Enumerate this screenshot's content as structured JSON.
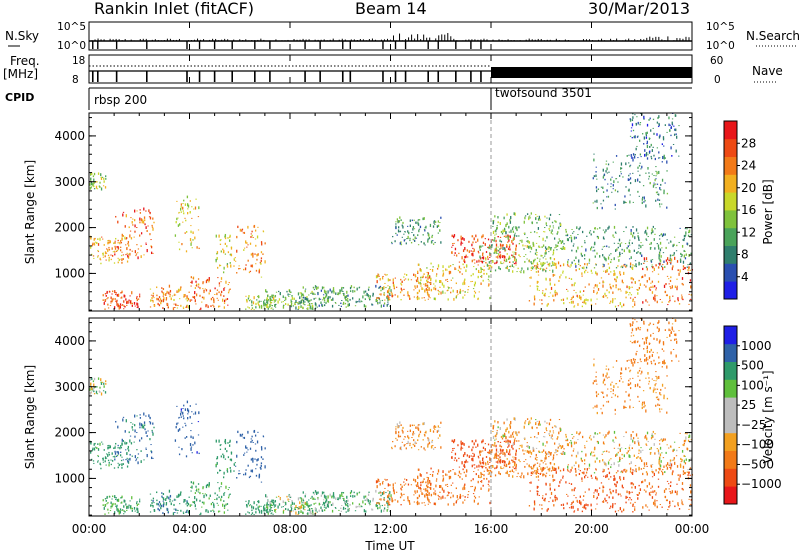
{
  "header": {
    "title": "Rankin Inlet (fitACF)",
    "beam": "Beam 14",
    "date": "30/Mar/2013"
  },
  "strip": {
    "nsky_label": "N.Sky",
    "nsky_tick_top": "10^5",
    "nsky_tick_bottom": "10^0",
    "nsearch_label": "N.Search",
    "nsearch_tick_top": "10^5",
    "nsearch_tick_bottom": "10^0",
    "freq_label_line1": "Freq.",
    "freq_label_line2": "[MHz]",
    "freq_tick_top": "18",
    "freq_tick_bottom": "8",
    "nave_label": "Nave",
    "nave_tick_top": "60",
    "nave_tick_bottom": "0",
    "cpid_label": "CPID",
    "cpid_segments": [
      {
        "name": "rbsp 200",
        "start_hour": 0,
        "end_hour": 16
      },
      {
        "name": "twofsound 3501",
        "start_hour": 16,
        "end_hour": 24
      }
    ]
  },
  "panels": {
    "power": {
      "ylabel": "Slant Range [km]",
      "cbar_label": "Power [dB]",
      "cbar_ticks": [
        "28",
        "24",
        "20",
        "16",
        "12",
        "8",
        "4"
      ],
      "cbar_colors": [
        "#1f1fe6",
        "#2a4fb0",
        "#2f7e6d",
        "#4aa35a",
        "#7fc23c",
        "#c9d82a",
        "#f2b020",
        "#f27a18",
        "#ee4a14",
        "#e8161a"
      ]
    },
    "velocity": {
      "ylabel": "Slant Range [km]",
      "cbar_label": "Velocity [m s⁻¹]",
      "cbar_ticks": [
        "1000",
        "500",
        "100",
        "25",
        "−25",
        "−100",
        "−500",
        "−1000"
      ],
      "cbar_colors": [
        "#e8161a",
        "#ee4a14",
        "#f27a18",
        "#f2a020",
        "#bdbdbd",
        "#bdbdbd",
        "#5fbf3c",
        "#2f9a6a",
        "#2f62a8",
        "#1f1fe6"
      ]
    }
  },
  "xaxis": {
    "label": "Time UT",
    "ticks": [
      "00:00",
      "04:00",
      "08:00",
      "12:00",
      "16:00",
      "20:00",
      "00:00"
    ]
  },
  "chart_data": {
    "type": "heatmap",
    "x_unit": "hour UT",
    "xlim": [
      0,
      24
    ],
    "ylim_km": [
      180,
      4500
    ],
    "yticks": [
      1000,
      2000,
      3000,
      4000
    ],
    "xticks_hours": [
      0,
      4,
      8,
      12,
      16,
      20,
      24
    ],
    "mode_change_hour": 16,
    "grid": false,
    "colorbar_position": "right",
    "blobs": [
      {
        "t0": 0.0,
        "t1": 1.6,
        "r0": 1200,
        "r1": 1800,
        "power": 20,
        "vel": 200
      },
      {
        "t0": 0.5,
        "t1": 2.0,
        "r0": 200,
        "r1": 600,
        "power": 26,
        "vel": 150
      },
      {
        "t0": 1.0,
        "t1": 2.6,
        "r0": 1300,
        "r1": 2400,
        "power": 24,
        "vel": 400
      },
      {
        "t0": 0.0,
        "t1": 0.7,
        "r0": 2800,
        "r1": 3150,
        "power": 14,
        "vel": 25
      },
      {
        "t0": 2.4,
        "t1": 4.0,
        "r0": 200,
        "r1": 700,
        "power": 22,
        "vel": 300
      },
      {
        "t0": 3.4,
        "t1": 4.4,
        "r0": 1400,
        "r1": 2700,
        "power": 18,
        "vel": 600
      },
      {
        "t0": 4.0,
        "t1": 5.6,
        "r0": 200,
        "r1": 900,
        "power": 24,
        "vel": 150
      },
      {
        "t0": 5.0,
        "t1": 5.8,
        "r0": 1000,
        "r1": 1800,
        "power": 16,
        "vel": 200
      },
      {
        "t0": 5.8,
        "t1": 7.0,
        "r0": 900,
        "r1": 2000,
        "power": 22,
        "vel": 500
      },
      {
        "t0": 6.2,
        "t1": 7.4,
        "r0": 200,
        "r1": 500,
        "power": 14,
        "vel": 200
      },
      {
        "t0": 7.0,
        "t1": 9.0,
        "r0": 200,
        "r1": 600,
        "power": 12,
        "vel": 50
      },
      {
        "t0": 8.5,
        "t1": 12.0,
        "r0": 250,
        "r1": 700,
        "power": 10,
        "vel": 100
      },
      {
        "t0": 11.4,
        "t1": 13.6,
        "r0": 400,
        "r1": 1000,
        "power": 22,
        "vel": -250
      },
      {
        "t0": 12.0,
        "t1": 14.0,
        "r0": 1600,
        "r1": 2200,
        "power": 10,
        "vel": -100
      },
      {
        "t0": 13.0,
        "t1": 16.0,
        "r0": 400,
        "r1": 1200,
        "power": 18,
        "vel": -300
      },
      {
        "t0": 14.4,
        "t1": 17.0,
        "r0": 1200,
        "r1": 1800,
        "power": 26,
        "vel": -500
      },
      {
        "t0": 15.5,
        "t1": 18.5,
        "r0": 1000,
        "r1": 1600,
        "power": 14,
        "vel": -150
      },
      {
        "t0": 16.0,
        "t1": 19.0,
        "r0": 1500,
        "r1": 2300,
        "power": 12,
        "vel": -80
      },
      {
        "t0": 17.5,
        "t1": 22.0,
        "r0": 250,
        "r1": 1200,
        "power": 20,
        "vel": -400
      },
      {
        "t0": 19.0,
        "t1": 24.0,
        "r0": 1100,
        "r1": 2000,
        "power": 10,
        "vel": -50
      },
      {
        "t0": 20.0,
        "t1": 23.0,
        "r0": 2400,
        "r1": 3600,
        "power": 8,
        "vel": -150
      },
      {
        "t0": 22.0,
        "t1": 24.0,
        "r0": 300,
        "r1": 1300,
        "power": 24,
        "vel": -300
      },
      {
        "t0": 21.5,
        "t1": 23.5,
        "r0": 3500,
        "r1": 4500,
        "power": 6,
        "vel": -200
      }
    ]
  }
}
